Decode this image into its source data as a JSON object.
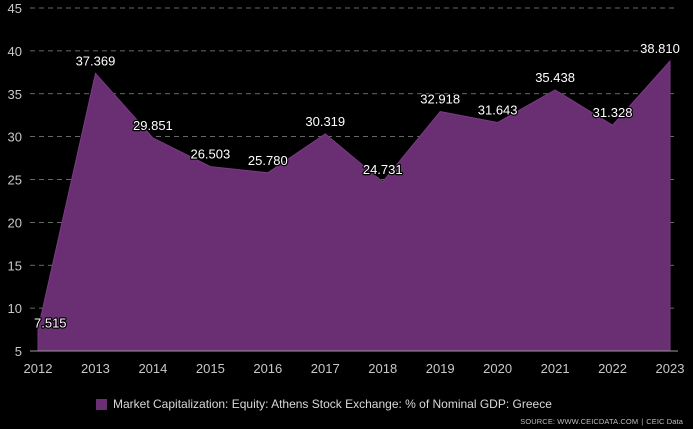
{
  "chart_data": {
    "type": "area",
    "categories": [
      "2012",
      "2013",
      "2014",
      "2015",
      "2016",
      "2017",
      "2018",
      "2019",
      "2020",
      "2021",
      "2022",
      "2023"
    ],
    "series": [
      {
        "name": "Market Capitalization: Equity: Athens Stock Exchange: % of Nominal GDP: Greece",
        "values": [
          7.515,
          37.369,
          29.851,
          26.503,
          25.78,
          30.319,
          24.731,
          32.918,
          31.643,
          35.438,
          31.328,
          38.81
        ],
        "labels": [
          "7.515",
          "37.369",
          "29.851",
          "26.503",
          "25.780",
          "30.319",
          "24.731",
          "32.918",
          "31.643",
          "35.438",
          "31.328",
          "38.810"
        ],
        "color": "#6a2f73"
      }
    ],
    "yticks": [
      "5",
      "10",
      "15",
      "20",
      "25",
      "30",
      "35",
      "40",
      "45"
    ],
    "ylim": [
      5,
      45
    ],
    "grid": true,
    "legend_position": "bottom-left"
  },
  "source": {
    "text": "SOURCE: WWW.CEICDATA.COM",
    "separator": "|",
    "brand": "CEIC Data"
  }
}
